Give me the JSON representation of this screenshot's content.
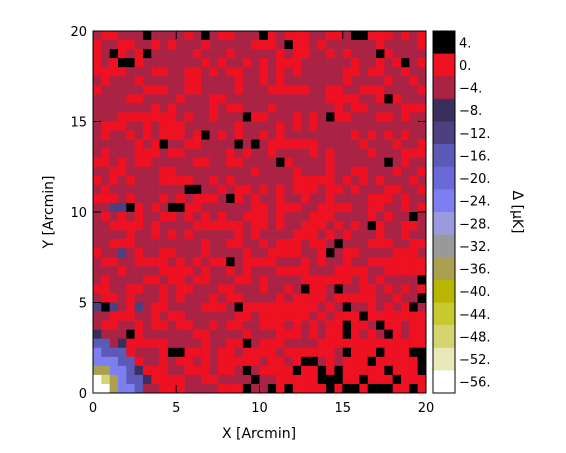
{
  "chart_data": {
    "type": "heatmap",
    "title": "",
    "xlabel": "X [Arcmin]",
    "ylabel": "Y [Arcmin]",
    "xlim": [
      0,
      20
    ],
    "ylim": [
      0,
      20
    ],
    "xticks": [
      "0",
      "5",
      "10",
      "15",
      "20"
    ],
    "yticks": [
      "0",
      "5",
      "10",
      "15",
      "20"
    ],
    "grid": false,
    "legend": "colorbar-right",
    "colorbar": {
      "label": "Δ [µK]",
      "levels": [
        "4.",
        "0.",
        "−4.",
        "−8.",
        "−12.",
        "−16.",
        "−20.",
        "−24.",
        "−28.",
        "−32.",
        "−36.",
        "−40.",
        "−44.",
        "−48.",
        "−52.",
        "−56."
      ],
      "colors": [
        "#000000",
        "#ee1122",
        "#aa2244",
        "#3a2f5c",
        "#4d3f80",
        "#5b5ab8",
        "#6a6ad6",
        "#7d7ef0",
        "#9a9adc",
        "#999999",
        "#aaa050",
        "#b8b600",
        "#c8c830",
        "#d4d470",
        "#e8e8b8",
        "#ffffff"
      ]
    },
    "pixels_per_side": 40,
    "patterns": {
      "background": "mixture of 0. (bright red) and -4. (dark magenta) pixels",
      "upper_left": "black (4.) pixels near the top-left corner",
      "lower_right": "dense black (4.) pixels in lower right region",
      "lower_left": "decrement to -56. (white/yellow/blue) at origin"
    }
  }
}
